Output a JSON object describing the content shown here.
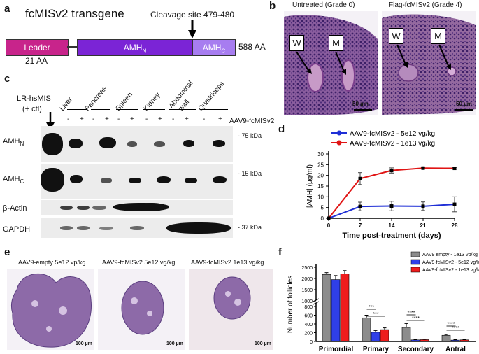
{
  "panels": {
    "a": "a",
    "b": "b",
    "c": "c",
    "d": "d",
    "e": "e",
    "f": "f"
  },
  "panel_a": {
    "title": "fcMISv2 transgene",
    "cleavage": "Cleavage site 479-480",
    "leader": "Leader",
    "leader_aa": "21 AA",
    "amhn": "AMH",
    "amhn_sub": "N",
    "amhc": "AMH",
    "amhc_sub": "C",
    "total": "588 AA",
    "colors": {
      "leader": "#c8248b",
      "amhn": "#7b24d6",
      "amhc": "#a77df0"
    }
  },
  "panel_b": {
    "left_title": "Untreated (Grade 0)",
    "right_title": "Flag-fcMISv2 (Grade 4)",
    "w": "W",
    "m": "M",
    "scale": "50 µm"
  },
  "panel_c": {
    "control": "LR-hsMIS",
    "control2": "(+ ctl)",
    "tissues": [
      "Liver",
      "Pancreas",
      "Spleen",
      "Kidney",
      "Abdominal",
      "Quadriceps"
    ],
    "tissue_line2": "wall",
    "vector": "AAV9-fcMISv2",
    "minus": "-",
    "plus": "+",
    "rows": [
      "AMH",
      "AMH",
      "β-Actin",
      "GAPDH"
    ],
    "row_subs": [
      "N",
      "C"
    ],
    "kda": [
      "- 75 kDa",
      "- 15 kDa",
      "- 37 kDa"
    ]
  },
  "panel_e": {
    "titles": [
      "AAV9-empty 5e12 vp/kg",
      "AAV9-fcMISv2 5e12 vg/kg",
      "AAV9-fcMISv2 1e13 vg/kg"
    ],
    "scale": "100 µm"
  },
  "chart_data": [
    {
      "type": "line",
      "xlabel": "Time post-treatment (days)",
      "ylabel": "[AMH] (µg/ml)",
      "x": [
        0,
        7,
        14,
        21,
        28
      ],
      "xlim": [
        0,
        28
      ],
      "ylim": [
        0,
        30
      ],
      "yticks": [
        0,
        5,
        10,
        15,
        20,
        25,
        30
      ],
      "legend_position": "top",
      "series": [
        {
          "name": "AAV9-fcMISv2 - 5e12 vg/kg",
          "color": "#1f2fd6",
          "values": [
            0,
            5.5,
            5.7,
            5.6,
            6.5
          ],
          "err": [
            0,
            2,
            2.2,
            2,
            3.5
          ]
        },
        {
          "name": "AAV9-fcMISv2 - 1e13 vg/kg",
          "color": "#e01414",
          "values": [
            0,
            18.5,
            22.3,
            23.4,
            23.3
          ],
          "err": [
            0,
            2.8,
            1.2,
            0.4,
            0.4
          ]
        }
      ]
    },
    {
      "type": "bar",
      "ylabel": "Number of follicles",
      "categories": [
        "Primordial",
        "Primary",
        "Secondary",
        "Antral"
      ],
      "yticks": [
        0,
        200,
        400,
        600,
        800,
        1000,
        1500,
        2000,
        2500
      ],
      "axis_break": [
        800,
        1000
      ],
      "legend_position": "top-right",
      "series": [
        {
          "name": "AAV9 empty - 1e13 vp/kg",
          "color": "#8c8c8c",
          "values": [
            2180,
            540,
            320,
            140
          ],
          "err": [
            80,
            60,
            90,
            20
          ]
        },
        {
          "name": "AAV9-fcMISv2 - 5e12 vg/kg",
          "color": "#2f3fe8",
          "values": [
            1950,
            210,
            35,
            30
          ],
          "err": [
            180,
            40,
            10,
            10
          ]
        },
        {
          "name": "AAV9-fcMISv2 - 1e13 vg/kg",
          "color": "#ee1c1c",
          "values": [
            2200,
            270,
            40,
            35
          ],
          "err": [
            150,
            40,
            10,
            10
          ]
        }
      ],
      "significance": [
        "***",
        "***",
        "****",
        "****",
        "****",
        "****"
      ]
    }
  ]
}
